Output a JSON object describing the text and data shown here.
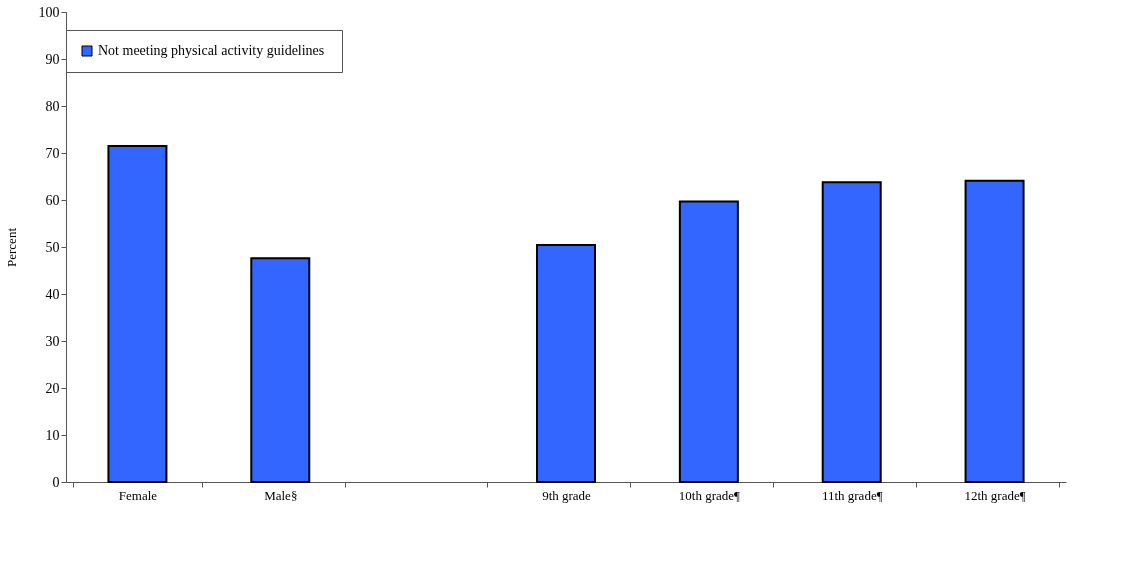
{
  "chart_data": {
    "type": "bar",
    "ylabel": "Percent",
    "categories": [
      "Female",
      "Male§",
      null,
      "9th grade",
      "10th grade¶",
      "11th grade¶",
      "12th grade¶"
    ],
    "series": [
      {
        "name": "Not meeting physical activity  guidelines",
        "color": "#3366ff",
        "values": [
          71.5,
          47.6,
          null,
          50.4,
          59.7,
          63.8,
          64.1
        ]
      }
    ],
    "ylim": [
      0,
      100
    ],
    "yticks": [
      0,
      10,
      20,
      30,
      40,
      50,
      60,
      70,
      80,
      90,
      100
    ],
    "grid": false,
    "legend": "top"
  }
}
